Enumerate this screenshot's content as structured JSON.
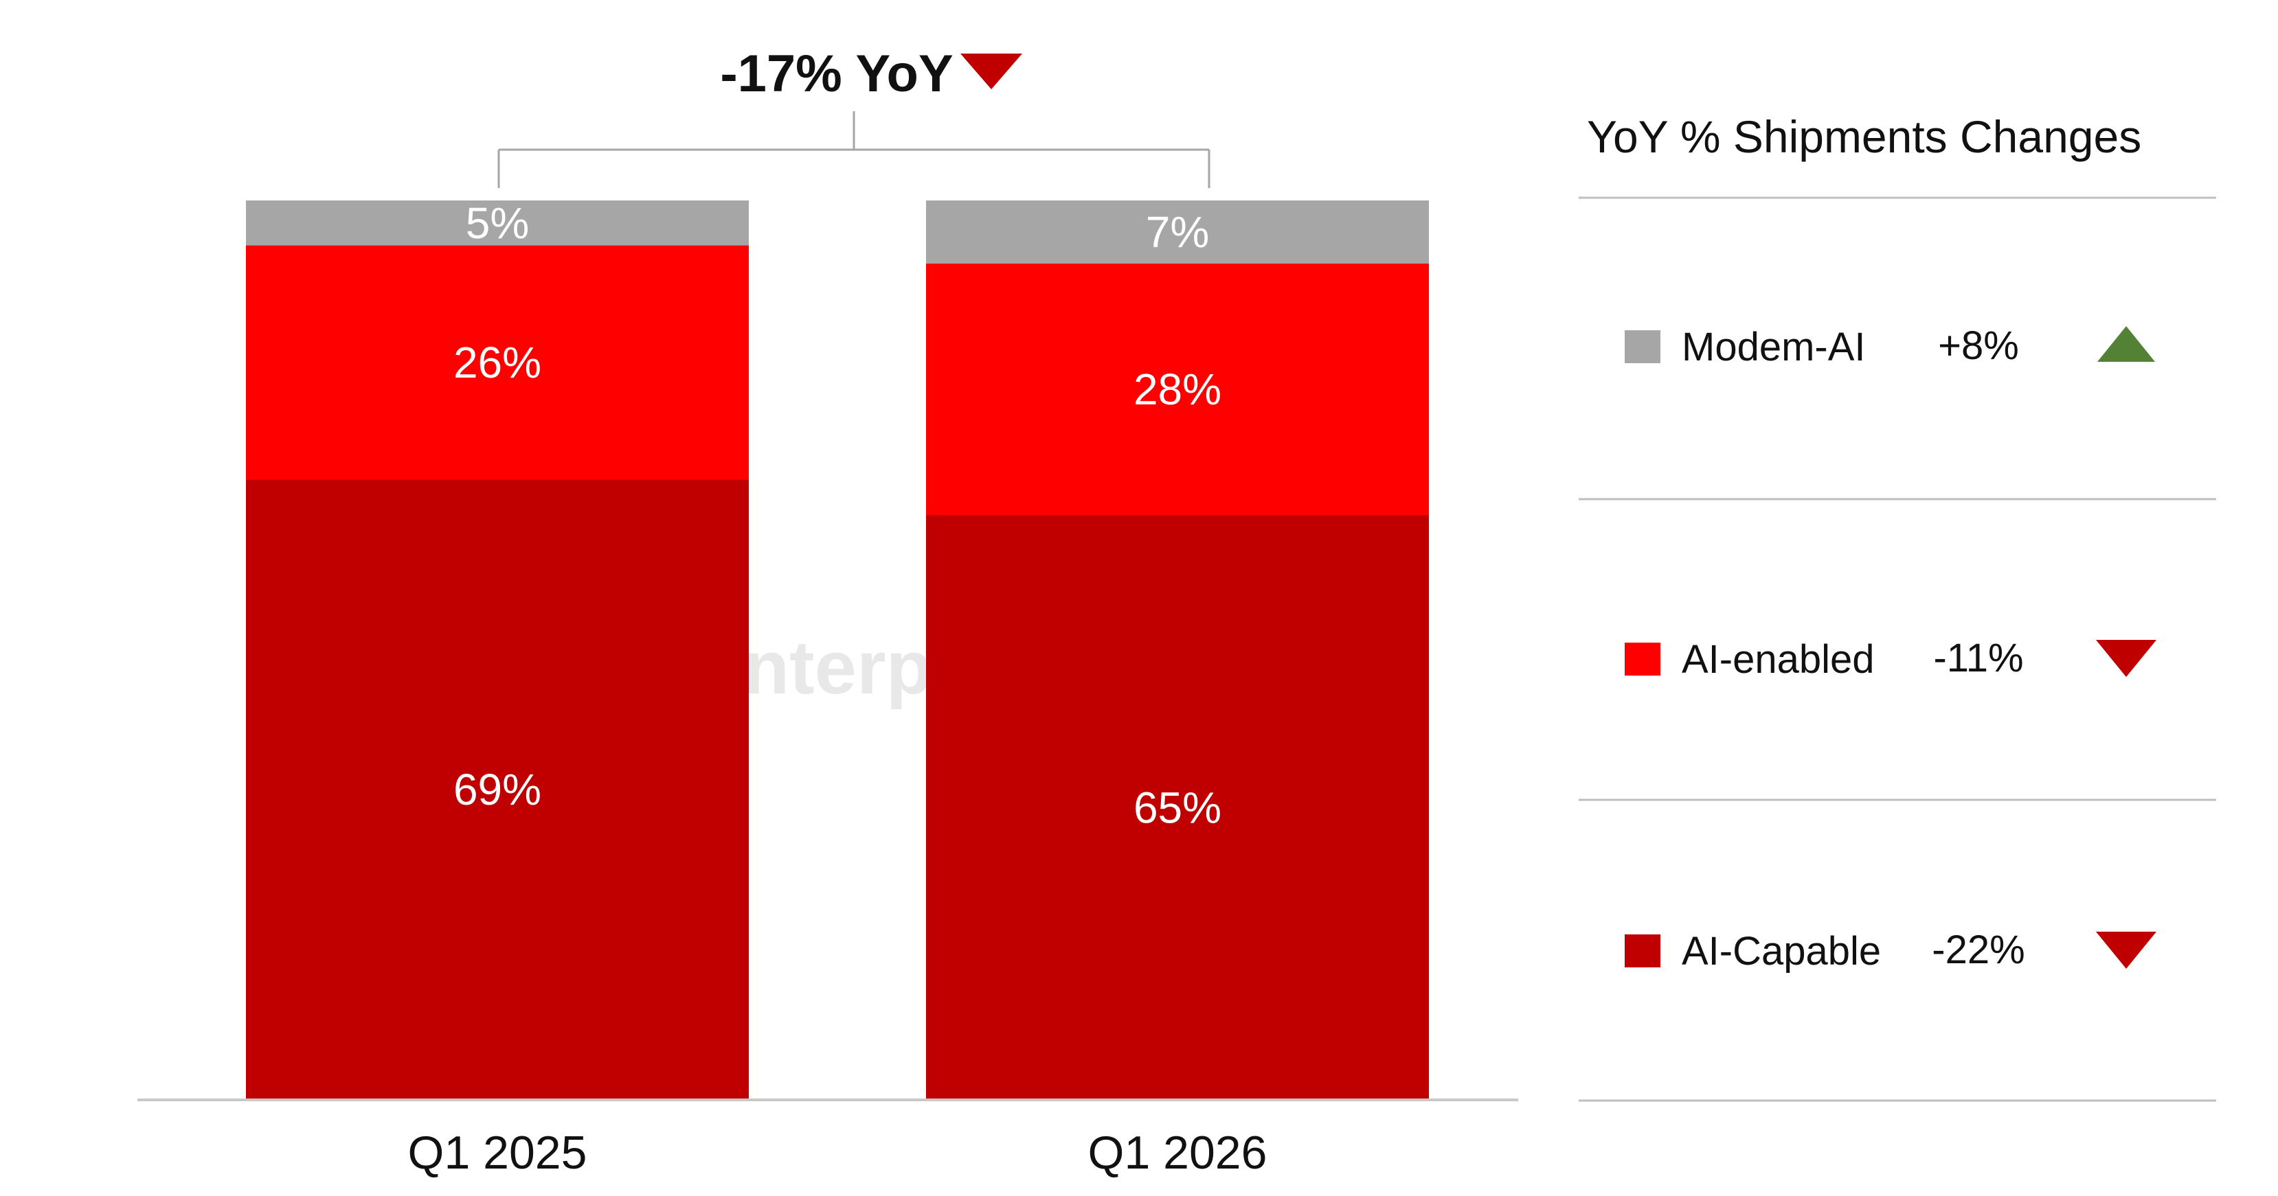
{
  "watermark": {
    "text": "Counterpoint"
  },
  "chart_data": {
    "type": "bar",
    "stacked": true,
    "percent_stacked": true,
    "categories": [
      "Q1 2025",
      "Q1 2026"
    ],
    "series": [
      {
        "name": "AI-Capable",
        "values": [
          69,
          65
        ],
        "labels": [
          "69%",
          "65%"
        ],
        "color": "#C00000"
      },
      {
        "name": "AI-enabled",
        "values": [
          26,
          28
        ],
        "labels": [
          "26%",
          "28%"
        ],
        "color": "#FF0000"
      },
      {
        "name": "Modem-AI",
        "values": [
          5,
          7
        ],
        "labels": [
          "5%",
          "7%"
        ],
        "color": "#A6A6A6"
      }
    ],
    "ylim": [
      0,
      100
    ],
    "grid": false,
    "headline": {
      "text": "-17% YoY",
      "direction": "down",
      "color": "#C00000"
    }
  },
  "panel": {
    "title": "YoY % Shipments Changes",
    "items": [
      {
        "name": "Modem-AI",
        "change": "+8%",
        "direction": "up",
        "swatch": "#A6A6A6",
        "arrow_color": "#538135"
      },
      {
        "name": "AI-enabled",
        "change": "-11%",
        "direction": "down",
        "swatch": "#FF0000",
        "arrow_color": "#C00000"
      },
      {
        "name": "AI-Capable",
        "change": "-22%",
        "direction": "down",
        "swatch": "#C00000",
        "arrow_color": "#C00000"
      }
    ]
  }
}
